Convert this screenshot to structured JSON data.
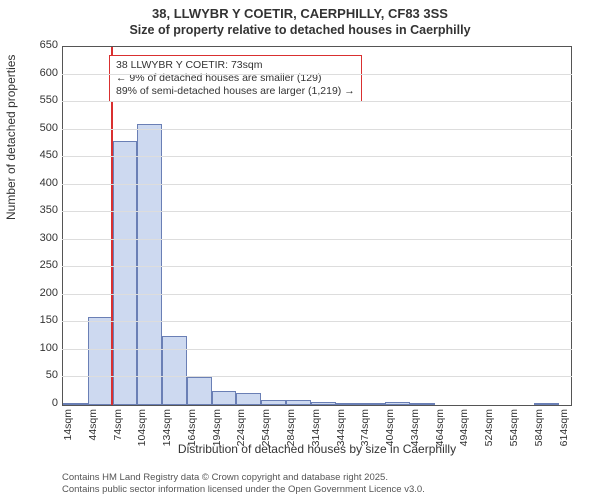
{
  "title_line1": "38, LLWYBR Y COETIR, CAERPHILLY, CF83 3SS",
  "title_line2": "Size of property relative to detached houses in Caerphilly",
  "ylabel": "Number of detached properties",
  "xlabel": "Distribution of detached houses by size in Caerphilly",
  "footnote_line1": "Contains HM Land Registry data © Crown copyright and database right 2025.",
  "footnote_line2": "Contains public sector information licensed under the Open Government Licence v3.0.",
  "chart": {
    "type": "histogram",
    "ylim": [
      0,
      650
    ],
    "ytick_step": 50,
    "xlim": [
      14,
      629
    ],
    "xtick_start": 14,
    "xtick_step": 30,
    "xtick_unit": "sqm",
    "bar_fill": "#cdd9f0",
    "bar_stroke": "#6a7fb5",
    "grid_color": "#dddddd",
    "axis_color": "#555555",
    "background_color": "#ffffff",
    "marker_color": "#d93030",
    "marker_x": 73,
    "bars": [
      {
        "x0": 14,
        "x1": 44,
        "count": 3
      },
      {
        "x0": 44,
        "x1": 74,
        "count": 160
      },
      {
        "x0": 74,
        "x1": 104,
        "count": 480
      },
      {
        "x0": 104,
        "x1": 134,
        "count": 510
      },
      {
        "x0": 134,
        "x1": 164,
        "count": 125
      },
      {
        "x0": 164,
        "x1": 194,
        "count": 50
      },
      {
        "x0": 194,
        "x1": 224,
        "count": 25
      },
      {
        "x0": 224,
        "x1": 254,
        "count": 22
      },
      {
        "x0": 254,
        "x1": 284,
        "count": 10
      },
      {
        "x0": 284,
        "x1": 314,
        "count": 10
      },
      {
        "x0": 314,
        "x1": 344,
        "count": 6
      },
      {
        "x0": 344,
        "x1": 374,
        "count": 2
      },
      {
        "x0": 374,
        "x1": 404,
        "count": 3
      },
      {
        "x0": 404,
        "x1": 434,
        "count": 5
      },
      {
        "x0": 434,
        "x1": 464,
        "count": 2
      },
      {
        "x0": 464,
        "x1": 494,
        "count": 0
      },
      {
        "x0": 494,
        "x1": 524,
        "count": 0
      },
      {
        "x0": 524,
        "x1": 554,
        "count": 0
      },
      {
        "x0": 554,
        "x1": 584,
        "count": 0
      },
      {
        "x0": 584,
        "x1": 614,
        "count": 2
      }
    ],
    "annotation": {
      "line1": "38 LLWYBR Y COETIR: 73sqm",
      "line2": "← 9% of detached houses are smaller (129)",
      "line3": "89% of semi-detached houses are larger (1,219) →",
      "border_color": "#d93030",
      "text_color": "#333333",
      "fontsize": 10.5
    }
  }
}
